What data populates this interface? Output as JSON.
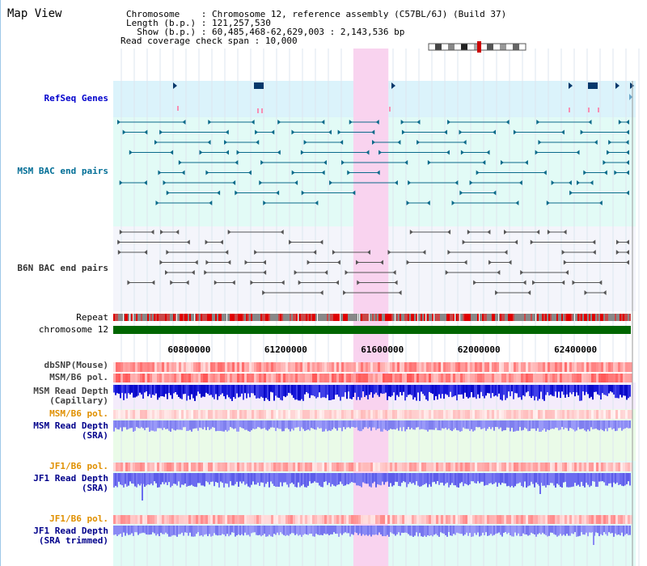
{
  "header": {
    "title": "Map View",
    "chromosome_label": "Chromosome",
    "chromosome_value": "Chromosome 12, reference assembly (C57BL/6J) (Build 37)",
    "length_label": "Length (b.p.)",
    "length_value": "121,257,530",
    "show_label": "Show (b.p.)",
    "show_value": "60,485,468-62,629,003 : 2,143,536 bp",
    "coverage_label": "Read coverage check span",
    "coverage_value": "10,000"
  },
  "tracks": {
    "refseq": "RefSeq Genes",
    "msm_bac": "MSM BAC end pairs",
    "b6n_bac": "B6N BAC end pairs",
    "repeat": "Repeat",
    "chromosome": "chromosome 12",
    "dbsnp": "dbSNP(Mouse)",
    "msm_b6_pol_1": "MSM/B6 pol.",
    "msm_read_depth_cap_1": "MSM Read Depth",
    "msm_read_depth_cap_2": "(Capillary)",
    "msm_b6_pol_2": "MSM/B6 pol.",
    "msm_read_depth_sra_1": "MSM Read Depth",
    "msm_read_depth_sra_2": "(SRA)",
    "jf1_b6_pol_1": "JF1/B6 pol.",
    "jf1_read_depth_sra_1": "JF1 Read Depth",
    "jf1_read_depth_sra_2": "(SRA)",
    "jf1_b6_pol_2": "JF1/B6 pol.",
    "jf1_read_depth_trim_1": "JF1 Read Depth",
    "jf1_read_depth_trim_2": "(SRA trimmed)"
  },
  "axis": {
    "ticks": [
      "60800000",
      "61200000",
      "61600000",
      "62000000",
      "62400000"
    ],
    "tick_values": [
      60800000,
      61200000,
      61600000,
      62000000,
      62400000
    ],
    "range": [
      60485468,
      62629003
    ],
    "highlight_range": [
      61480000,
      61625000
    ]
  },
  "colors": {
    "refseq_label": "#0000cc",
    "msm_bac_label": "#006e96",
    "b6n_bac_label": "#333333",
    "pol_label_gray": "#444444",
    "pol_label_orange": "#e09000",
    "depth_label_blue": "#00008b",
    "refseq_bg": "#dbf3fb",
    "msm_bac_bg": "#e2fbf6",
    "b6n_bac_bg": "#f4f5fb",
    "highlight": "#f9d3ef",
    "chromosome_bar": "#006600"
  }
}
